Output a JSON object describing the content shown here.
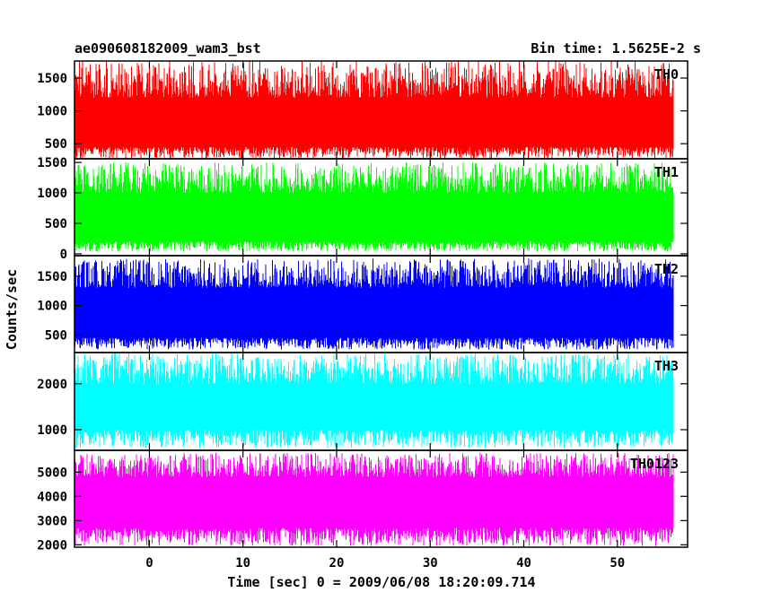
{
  "chart_data": {
    "type": "line",
    "title": "ae090608182009_wam3_bst",
    "bin_time_label": "Bin time: 1.5625E-2 s",
    "xlabel": "Time [sec] 0 = 2009/06/08 18:20:09.714",
    "ylabel": "Counts/sec",
    "xlim": [
      -8,
      57.5
    ],
    "x_ticks": [
      0,
      10,
      20,
      30,
      40,
      50
    ],
    "x_tick_labels": [
      "0",
      "10",
      "20",
      "30",
      "40",
      "50"
    ],
    "data_x_range": [
      -8.0,
      56.0
    ],
    "bin_time": 0.015625,
    "series": [
      {
        "name": "TH0",
        "color": "#ff0000",
        "ylim": [
          270,
          1760
        ],
        "y_ticks": [
          500,
          1000,
          1500
        ],
        "y_tick_labels": [
          "500",
          "1000",
          "1500"
        ],
        "band_low": 450,
        "band_high": 1200,
        "spike_max": 1760,
        "dip_min": 270
      },
      {
        "name": "TH1",
        "color": "#00ff00",
        "ylim": [
          -30,
          1560
        ],
        "y_ticks": [
          0,
          500,
          1000,
          1500
        ],
        "y_tick_labels": [
          "0",
          "500",
          "1000",
          "1500"
        ],
        "band_low": 200,
        "band_high": 1000,
        "spike_max": 1500,
        "dip_min": 40
      },
      {
        "name": "TH2",
        "color": "#0000ff",
        "ylim": [
          200,
          1850
        ],
        "y_ticks": [
          500,
          1000,
          1500
        ],
        "y_tick_labels": [
          "500",
          "1000",
          "1500"
        ],
        "band_low": 450,
        "band_high": 1300,
        "spike_max": 1800,
        "dip_min": 250
      },
      {
        "name": "TH3",
        "color": "#00ffff",
        "ylim": [
          550,
          2680
        ],
        "y_ticks": [
          1000,
          2000
        ],
        "y_tick_labels": [
          "1000",
          "2000"
        ],
        "band_low": 1000,
        "band_high": 2000,
        "spike_max": 2680,
        "dip_min": 600
      },
      {
        "name": "TH0123",
        "color": "#ff00ff",
        "ylim": [
          1900,
          5900
        ],
        "y_ticks": [
          2000,
          3000,
          4000,
          5000
        ],
        "y_tick_labels": [
          "2000",
          "3000",
          "4000",
          "5000"
        ],
        "band_low": 2700,
        "band_high": 4800,
        "spike_max": 5800,
        "dip_min": 1950
      }
    ]
  }
}
